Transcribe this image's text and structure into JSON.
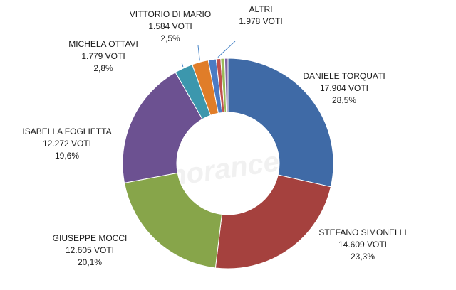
{
  "chart_data": {
    "type": "pie",
    "donut": true,
    "title": "",
    "watermark": "ignorance",
    "slices": [
      {
        "name": "DANIELE TORQUATI",
        "votes": 17904,
        "votes_label": "17.904 VOTI",
        "percent": 28.5,
        "percent_label": "28,5%",
        "color": "#3f6aa6"
      },
      {
        "name": "STEFANO SIMONELLI",
        "votes": 14609,
        "votes_label": "14.609 VOTI",
        "percent": 23.3,
        "percent_label": "23,3%",
        "color": "#a5413e"
      },
      {
        "name": "GIUSEPPE MOCCI",
        "votes": 12605,
        "votes_label": "12.605 VOTI",
        "percent": 20.1,
        "percent_label": "20,1%",
        "color": "#87a54a"
      },
      {
        "name": "ISABELLA FOGLIETTA",
        "votes": 12272,
        "votes_label": "12.272 VOTI",
        "percent": 19.6,
        "percent_label": "19,6%",
        "color": "#6c5191"
      },
      {
        "name": "MICHELA OTTAVI",
        "votes": 1779,
        "votes_label": "1.779 VOTI",
        "percent": 2.8,
        "percent_label": "2,8%",
        "color": "#3c97ad"
      },
      {
        "name": "VITTORIO DI MARIO",
        "votes": 1584,
        "votes_label": "1.584 VOTI",
        "percent": 2.5,
        "percent_label": "2,5%",
        "color": "#e07d29"
      },
      {
        "name": "ALTRI",
        "votes": 1978,
        "votes_label": "1.978 VOTI",
        "percent": null,
        "percent_label": "",
        "color": "#8fa9d6",
        "parts": [
          {
            "percent": 1.2,
            "color": "#4b7bc4"
          },
          {
            "percent": 0.7,
            "color": "#c0504d"
          },
          {
            "percent": 0.6,
            "color": "#9bbb59"
          },
          {
            "percent": 0.5,
            "color": "#8064a2"
          }
        ]
      }
    ]
  }
}
